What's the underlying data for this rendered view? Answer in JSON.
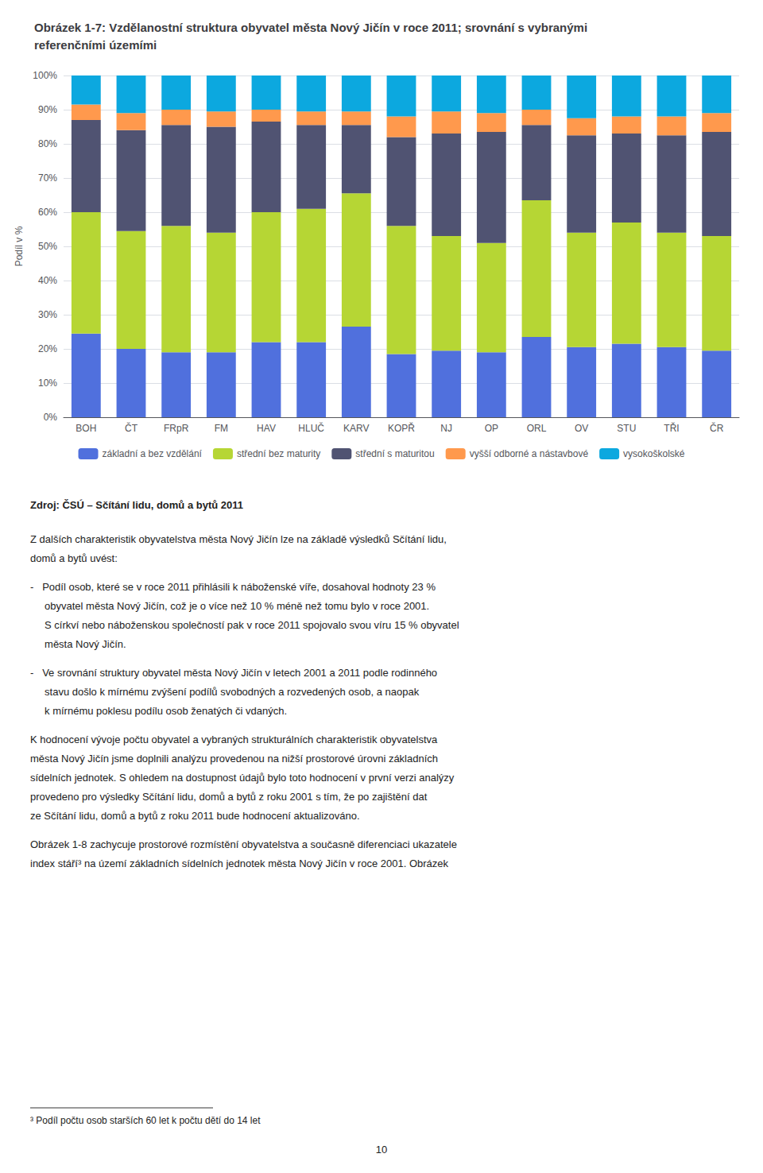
{
  "chart_data": {
    "type": "bar",
    "title": "Obrázek 1-7: Vzdělanostní struktura obyvatel města Nový Jičín v roce 2011; srovnání s vybranými\nreferenčními územími",
    "y_label": "Podíl v %",
    "categories": [
      "BOH",
      "ČT",
      "FRpR",
      "FM",
      "HAV",
      "HLUČ",
      "KARV",
      "KOPŘ",
      "NJ",
      "OP",
      "ORL",
      "OV",
      "STU",
      "TŘI",
      "ČR"
    ],
    "series": [
      {
        "name": "základní a bez vzdělání",
        "values": [
          24.5,
          20.0,
          19.0,
          19.0,
          22.0,
          22.0,
          26.5,
          18.5,
          19.5,
          19.0,
          23.5,
          20.5,
          21.5,
          20.5,
          19.5
        ]
      },
      {
        "name": "střední bez maturity",
        "values": [
          35.5,
          34.5,
          37.0,
          35.0,
          38.0,
          39.0,
          39.0,
          37.5,
          33.5,
          32.0,
          40.0,
          33.5,
          35.5,
          33.5,
          33.5
        ]
      },
      {
        "name": "střední s maturitou",
        "values": [
          27.0,
          29.5,
          29.5,
          31.0,
          26.5,
          24.5,
          20.0,
          26.0,
          30.0,
          32.5,
          22.0,
          28.5,
          26.0,
          28.5,
          30.5
        ]
      },
      {
        "name": "vyšší odborné a nástavbové",
        "values": [
          4.5,
          5.0,
          4.5,
          4.5,
          3.5,
          4.0,
          4.0,
          6.0,
          6.5,
          5.5,
          4.5,
          5.0,
          5.0,
          5.5,
          5.5
        ]
      },
      {
        "name": "vysokoškolské",
        "values": [
          8.5,
          11.0,
          10.0,
          10.5,
          10.0,
          10.5,
          10.5,
          12.0,
          10.5,
          11.0,
          10.0,
          12.5,
          12.0,
          12.0,
          11.0
        ]
      }
    ],
    "stacked": true,
    "ylim": [
      0,
      100
    ],
    "yticks": [
      {
        "value": 0,
        "label": "0%"
      },
      {
        "value": 10,
        "label": "10%"
      },
      {
        "value": 20,
        "label": "20%"
      },
      {
        "value": 30,
        "label": "30%"
      },
      {
        "value": 40,
        "label": "40%"
      },
      {
        "value": 50,
        "label": "50%"
      },
      {
        "value": 60,
        "label": "60%"
      },
      {
        "value": 70,
        "label": "70%"
      },
      {
        "value": 80,
        "label": "80%"
      },
      {
        "value": 90,
        "label": "90%"
      },
      {
        "value": 100,
        "label": "100%"
      }
    ],
    "grid": true,
    "legend": "bottom",
    "source": "Zdroj: ČSÚ – Sčítání lidu, domů a bytů 2011",
    "annotations": [
      [
        "Z dalších charakteristik obyvatelstva města Nový Jičín lze na základě výsledků Sčítání lidu,",
        "domů a bytů uvést:"
      ],
      [
        "-   Podíl osob, které se v roce 2011 přihlásili k náboženské víře, dosahoval hodnoty 23 %",
        "     obyvatel města Nový Jičín, což je o více než 10 % méně než tomu bylo v roce 2001.",
        "     S církví nebo náboženskou společností pak v roce 2011 spojovalo svou víru 15 % obyvatel",
        "     města Nový Jičín."
      ],
      [
        "-   Ve srovnání struktury obyvatel města Nový Jičín v letech 2001 a 2011 podle rodinného",
        "     stavu došlo k mírnému zvýšení podílů svobodných a rozvedených osob, a naopak",
        "     k mírnému poklesu podílu osob ženatých či vdaných."
      ],
      [
        "K hodnocení vývoje počtu obyvatel a vybraných strukturálních charakteristik obyvatelstva",
        "města Nový Jičín jsme doplnili analýzu provedenou na nižší prostorové úrovni základních",
        "sídelních jednotek. S ohledem na dostupnost údajů bylo toto hodnocení v první verzi analýzy",
        "provedeno pro výsledky Sčítání lidu, domů a bytů z roku 2001 s tím, že po zajištění dat",
        "ze Sčítání lidu, domů a bytů z roku 2011 bude hodnocení aktualizováno."
      ],
      [
        "Obrázek 1-8 zachycuje prostorové rozmístění obyvatelstva a současně diferenciaci ukazatele",
        "index stáří³ na území základních sídelních jednotek města Nový Jičín v roce 2001. Obrázek"
      ]
    ],
    "footnote": "³ Podíl počtu osob starších 60 let k počtu dětí do 14 let",
    "page_number": "10"
  }
}
